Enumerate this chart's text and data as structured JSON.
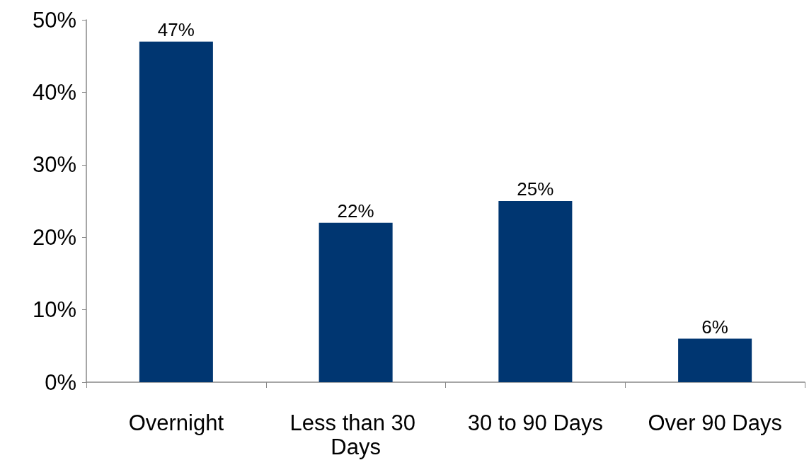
{
  "chart_data": {
    "type": "bar",
    "categories": [
      "Overnight",
      "Less than 30 Days",
      "30 to 90 Days",
      "Over 90 Days"
    ],
    "values": [
      47,
      22,
      25,
      6
    ],
    "value_labels": [
      "47%",
      "22%",
      "25%",
      "6%"
    ],
    "color": "#003671",
    "ylim": [
      0,
      50
    ],
    "yticks": [
      {
        "value": 0,
        "label": "0%"
      },
      {
        "value": 10,
        "label": "10%"
      },
      {
        "value": 20,
        "label": "20%"
      },
      {
        "value": 30,
        "label": "30%"
      },
      {
        "value": 40,
        "label": "40%"
      },
      {
        "value": 50,
        "label": "50%"
      }
    ],
    "grid": false
  }
}
